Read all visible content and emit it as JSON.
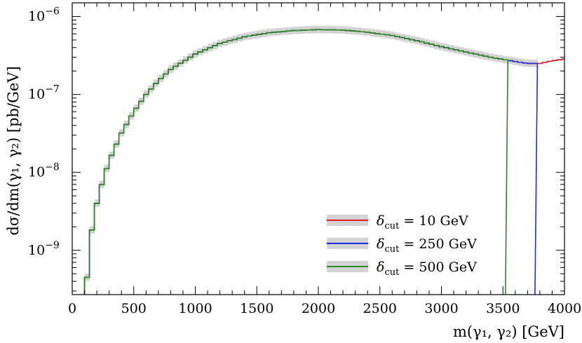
{
  "chart_data": {
    "type": "line",
    "style": "step",
    "xlabel": "m(γ₁, γ₂) [GeV]",
    "ylabel": "dσ/dm(γ₁, γ₂) [pb/GeV]",
    "xlim": [
      0,
      4000
    ],
    "ylim": [
      2.7e-10,
      1.5e-06
    ],
    "yscale": "log",
    "grid": false,
    "legend_position": "bottom-right",
    "x_tick_labels": [
      "0",
      "500",
      "1000",
      "1500",
      "2000",
      "2500",
      "3000",
      "3500",
      "4000"
    ],
    "y_ticks": [
      {
        "value": 1e-09,
        "label": "10",
        "exp": "−9"
      },
      {
        "value": 1e-08,
        "label": "10",
        "exp": "−8"
      },
      {
        "value": 1e-07,
        "label": "10",
        "exp": "−7"
      },
      {
        "value": 1e-06,
        "label": "10",
        "exp": "−6"
      }
    ],
    "band": {
      "color": "#d3d3d3",
      "rel_low": 0.9,
      "rel_high": 1.12,
      "x_range": [
        100,
        3760
      ]
    },
    "envelope_points": [
      [
        100,
        2.7e-10
      ],
      [
        120,
        4.5e-10
      ],
      [
        150,
        1.5e-09
      ],
      [
        200,
        4e-09
      ],
      [
        250,
        8e-09
      ],
      [
        300,
        1.4e-08
      ],
      [
        400,
        3.2e-08
      ],
      [
        500,
        6e-08
      ],
      [
        600,
        1e-07
      ],
      [
        700,
        1.5e-07
      ],
      [
        800,
        2.1e-07
      ],
      [
        1000,
        3.3e-07
      ],
      [
        1200,
        4.5e-07
      ],
      [
        1400,
        5.5e-07
      ],
      [
        1600,
        6.2e-07
      ],
      [
        1800,
        6.6e-07
      ],
      [
        2000,
        6.8e-07
      ],
      [
        2200,
        6.7e-07
      ],
      [
        2400,
        6.3e-07
      ],
      [
        2600,
        5.7e-07
      ],
      [
        2800,
        4.9e-07
      ],
      [
        3000,
        4.1e-07
      ],
      [
        3200,
        3.5e-07
      ],
      [
        3400,
        3e-07
      ],
      [
        3600,
        2.65e-07
      ],
      [
        3700,
        2.5e-07
      ],
      [
        3800,
        2.5e-07
      ],
      [
        3900,
        2.7e-07
      ],
      [
        4000,
        2.85e-07
      ]
    ],
    "bin_width": 40,
    "series": [
      {
        "label": "δcut = 10 GeV",
        "color": "#e41a1c",
        "x_range": [
          100,
          4000
        ]
      },
      {
        "label": "δcut = 250 GeV",
        "color": "#1a2fe0",
        "x_range": [
          100,
          3760
        ],
        "dropoff": [
          [
            3720,
            1.8e-07
          ]
        ]
      },
      {
        "label": "δcut = 500 GeV",
        "color": "#2a8a22",
        "x_range": [
          100,
          3520
        ],
        "dropoff": [
          [
            3480,
            1.4e-07
          ]
        ]
      }
    ],
    "legend": {
      "entries": [
        {
          "sub": "cut",
          "rest": " = 10 GeV",
          "color": "#e41a1c"
        },
        {
          "sub": "cut",
          "rest": " = 250 GeV",
          "color": "#1a2fe0"
        },
        {
          "sub": "cut",
          "rest": " = 500 GeV",
          "color": "#2a8a22"
        }
      ]
    }
  }
}
